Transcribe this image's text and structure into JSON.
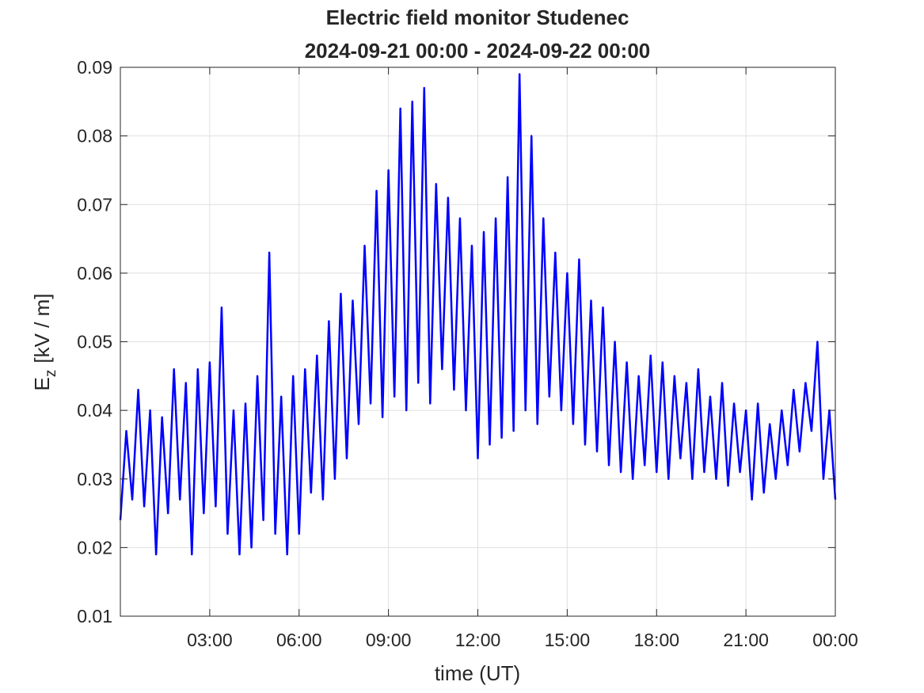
{
  "chart_data": {
    "type": "line",
    "title": "Electric field monitor Studenec",
    "subtitle": "2024-09-21 00:00 - 2024-09-22 00:00",
    "xlabel": "time (UT)",
    "ylabel": {
      "base": "E",
      "subscript": "z",
      "unit": "[kV / m]"
    },
    "xlim": [
      0,
      24
    ],
    "xticks": [
      {
        "value": 3,
        "label": "03:00"
      },
      {
        "value": 6,
        "label": "06:00"
      },
      {
        "value": 9,
        "label": "09:00"
      },
      {
        "value": 12,
        "label": "12:00"
      },
      {
        "value": 15,
        "label": "15:00"
      },
      {
        "value": 18,
        "label": "18:00"
      },
      {
        "value": 21,
        "label": "21:00"
      },
      {
        "value": 24,
        "label": "00:00"
      }
    ],
    "ylim": [
      0.01,
      0.09
    ],
    "yticks": [
      0.01,
      0.02,
      0.03,
      0.04,
      0.05,
      0.06,
      0.07,
      0.08,
      0.09
    ],
    "grid": true,
    "x": [
      0,
      0.2,
      0.4,
      0.6,
      0.8,
      1,
      1.2,
      1.4,
      1.6,
      1.8,
      2,
      2.2,
      2.4,
      2.6,
      2.8,
      3,
      3.2,
      3.4,
      3.6,
      3.8,
      4,
      4.2,
      4.4,
      4.6,
      4.8,
      5,
      5.2,
      5.4,
      5.6,
      5.8,
      6,
      6.2,
      6.4,
      6.6,
      6.8,
      7,
      7.2,
      7.4,
      7.6,
      7.8,
      8,
      8.2,
      8.4,
      8.6,
      8.8,
      9,
      9.2,
      9.4,
      9.6,
      9.8,
      10,
      10.2,
      10.4,
      10.6,
      10.8,
      11,
      11.2,
      11.4,
      11.6,
      11.8,
      12,
      12.2,
      12.4,
      12.6,
      12.8,
      13,
      13.2,
      13.4,
      13.6,
      13.8,
      14,
      14.2,
      14.4,
      14.6,
      14.8,
      15,
      15.2,
      15.4,
      15.6,
      15.8,
      16,
      16.2,
      16.4,
      16.6,
      16.8,
      17,
      17.2,
      17.4,
      17.6,
      17.8,
      18,
      18.2,
      18.4,
      18.6,
      18.8,
      19,
      19.2,
      19.4,
      19.6,
      19.8,
      20,
      20.2,
      20.4,
      20.6,
      20.8,
      21,
      21.2,
      21.4,
      21.6,
      21.8,
      22,
      22.2,
      22.4,
      22.6,
      22.8,
      23,
      23.2,
      23.4,
      23.6,
      23.8,
      24
    ],
    "series": [
      {
        "color": "#0000ff",
        "values": [
          0.024,
          0.037,
          0.027,
          0.043,
          0.026,
          0.04,
          0.019,
          0.039,
          0.025,
          0.046,
          0.027,
          0.044,
          0.019,
          0.046,
          0.025,
          0.047,
          0.026,
          0.055,
          0.022,
          0.04,
          0.019,
          0.041,
          0.02,
          0.045,
          0.024,
          0.063,
          0.022,
          0.042,
          0.019,
          0.045,
          0.022,
          0.046,
          0.028,
          0.048,
          0.027,
          0.053,
          0.03,
          0.057,
          0.033,
          0.056,
          0.038,
          0.064,
          0.041,
          0.072,
          0.039,
          0.075,
          0.042,
          0.084,
          0.04,
          0.085,
          0.044,
          0.087,
          0.041,
          0.073,
          0.046,
          0.071,
          0.043,
          0.068,
          0.04,
          0.064,
          0.033,
          0.066,
          0.035,
          0.068,
          0.036,
          0.074,
          0.037,
          0.089,
          0.04,
          0.08,
          0.038,
          0.068,
          0.042,
          0.063,
          0.04,
          0.06,
          0.038,
          0.062,
          0.035,
          0.056,
          0.034,
          0.055,
          0.032,
          0.05,
          0.031,
          0.047,
          0.03,
          0.045,
          0.032,
          0.048,
          0.031,
          0.047,
          0.03,
          0.045,
          0.033,
          0.044,
          0.03,
          0.046,
          0.031,
          0.042,
          0.03,
          0.044,
          0.029,
          0.041,
          0.031,
          0.04,
          0.027,
          0.041,
          0.028,
          0.038,
          0.03,
          0.04,
          0.032,
          0.043,
          0.034,
          0.044,
          0.037,
          0.05,
          0.03,
          0.04,
          0.027
        ]
      }
    ]
  }
}
